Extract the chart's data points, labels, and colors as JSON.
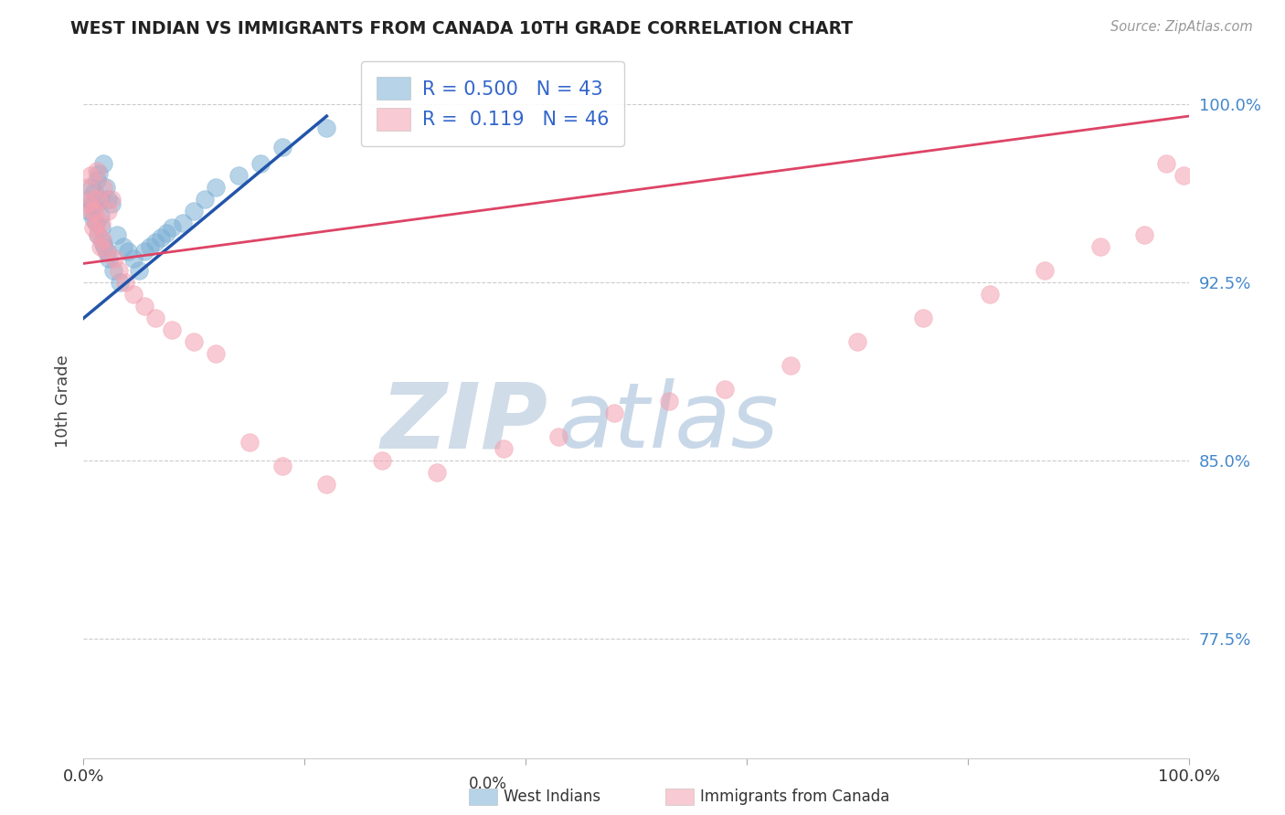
{
  "title": "WEST INDIAN VS IMMIGRANTS FROM CANADA 10TH GRADE CORRELATION CHART",
  "source_text": "Source: ZipAtlas.com",
  "ylabel": "10th Grade",
  "xlim": [
    0.0,
    1.0
  ],
  "ylim": [
    0.725,
    1.025
  ],
  "yticks": [
    0.775,
    0.85,
    0.925,
    1.0
  ],
  "ytick_labels": [
    "77.5%",
    "85.0%",
    "92.5%",
    "100.0%"
  ],
  "xtick_labels_left": "0.0%",
  "xtick_labels_right": "100.0%",
  "blue_R": 0.5,
  "blue_N": 43,
  "pink_R": 0.119,
  "pink_N": 46,
  "blue_color": "#7bafd4",
  "pink_color": "#f4a0b0",
  "blue_line_color": "#2255aa",
  "pink_line_color": "#dd4466",
  "watermark_zip": "ZIP",
  "watermark_atlas": "atlas",
  "watermark_color_zip": "#d0dce8",
  "watermark_color_atlas": "#c8d8e8",
  "blue_scatter_x": [
    0.005,
    0.005,
    0.007,
    0.008,
    0.009,
    0.01,
    0.01,
    0.011,
    0.012,
    0.013,
    0.014,
    0.015,
    0.015,
    0.016,
    0.017,
    0.018,
    0.019,
    0.02,
    0.021,
    0.022,
    0.023,
    0.025,
    0.027,
    0.03,
    0.033,
    0.036,
    0.04,
    0.045,
    0.05,
    0.055,
    0.06,
    0.065,
    0.07,
    0.075,
    0.08,
    0.09,
    0.1,
    0.11,
    0.12,
    0.14,
    0.16,
    0.18,
    0.22
  ],
  "blue_scatter_y": [
    0.96,
    0.955,
    0.965,
    0.958,
    0.952,
    0.963,
    0.957,
    0.95,
    0.968,
    0.945,
    0.971,
    0.96,
    0.953,
    0.948,
    0.942,
    0.975,
    0.94,
    0.965,
    0.938,
    0.96,
    0.935,
    0.958,
    0.93,
    0.945,
    0.925,
    0.94,
    0.938,
    0.935,
    0.93,
    0.938,
    0.94,
    0.942,
    0.944,
    0.946,
    0.948,
    0.95,
    0.955,
    0.96,
    0.965,
    0.97,
    0.975,
    0.982,
    0.99
  ],
  "pink_scatter_x": [
    0.004,
    0.005,
    0.006,
    0.007,
    0.008,
    0.009,
    0.01,
    0.011,
    0.012,
    0.013,
    0.014,
    0.015,
    0.016,
    0.017,
    0.018,
    0.02,
    0.022,
    0.025,
    0.028,
    0.032,
    0.038,
    0.045,
    0.055,
    0.065,
    0.08,
    0.1,
    0.12,
    0.15,
    0.18,
    0.22,
    0.27,
    0.32,
    0.38,
    0.43,
    0.48,
    0.53,
    0.58,
    0.64,
    0.7,
    0.76,
    0.82,
    0.87,
    0.92,
    0.96,
    0.98,
    0.995
  ],
  "pink_scatter_y": [
    0.965,
    0.958,
    0.97,
    0.955,
    0.96,
    0.948,
    0.955,
    0.95,
    0.972,
    0.945,
    0.96,
    0.94,
    0.95,
    0.943,
    0.965,
    0.938,
    0.955,
    0.96,
    0.935,
    0.93,
    0.925,
    0.92,
    0.915,
    0.91,
    0.905,
    0.9,
    0.895,
    0.858,
    0.848,
    0.84,
    0.85,
    0.845,
    0.855,
    0.86,
    0.87,
    0.875,
    0.88,
    0.89,
    0.9,
    0.91,
    0.92,
    0.93,
    0.94,
    0.945,
    0.975,
    0.97
  ],
  "blue_trend_x0": 0.0,
  "blue_trend_y0": 0.91,
  "blue_trend_x1": 0.22,
  "blue_trend_y1": 0.995,
  "pink_trend_x0": 0.0,
  "pink_trend_y0": 0.933,
  "pink_trend_x1": 1.0,
  "pink_trend_y1": 0.995
}
